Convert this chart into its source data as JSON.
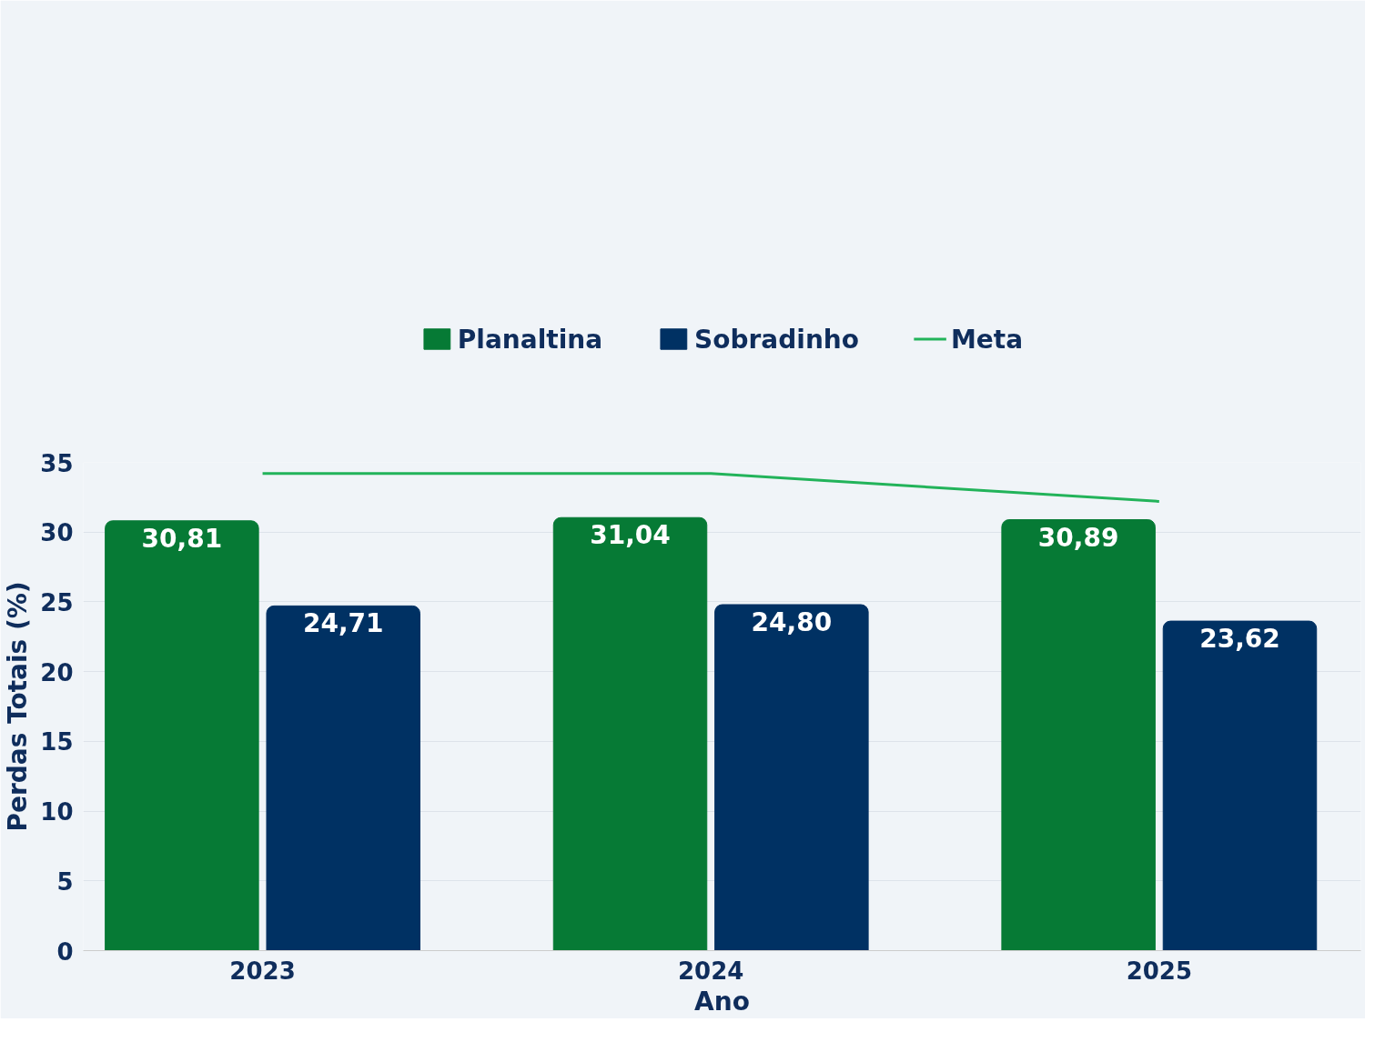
{
  "chart_data": {
    "type": "bar",
    "xlabel": "Ano",
    "ylabel": "Perdas Totais (%)",
    "categories": [
      "2023",
      "2024",
      "2025"
    ],
    "series": [
      {
        "name": "Planaltina",
        "color": "#067a35",
        "values": [
          30.81,
          31.04,
          30.89
        ],
        "value_labels": [
          "30,81",
          "31,04",
          "30,89"
        ]
      },
      {
        "name": "Sobradinho",
        "color": "#003163",
        "values": [
          24.71,
          24.8,
          23.62
        ],
        "value_labels": [
          "24,71",
          "24,80",
          "23,62"
        ]
      },
      {
        "name": "Meta",
        "type": "line",
        "color": "#22b35a",
        "values": [
          34.2,
          34.2,
          32.2
        ]
      }
    ],
    "ylim": [
      0,
      35
    ],
    "yticks": [
      0,
      5,
      10,
      15,
      20,
      25,
      30,
      35
    ],
    "grid": "y",
    "legend": "top",
    "marker": "none"
  }
}
